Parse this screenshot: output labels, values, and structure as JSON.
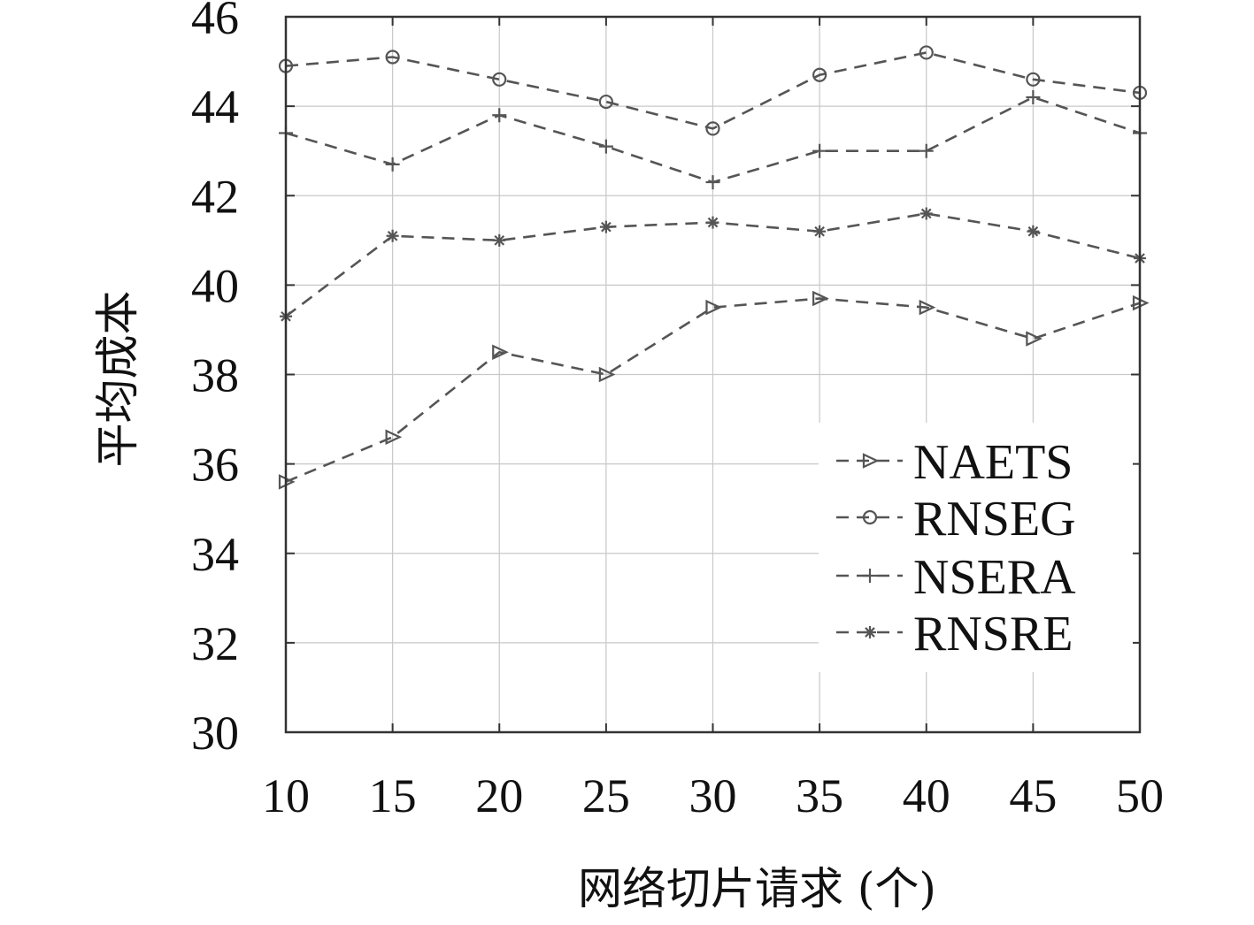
{
  "chart_data": {
    "type": "line",
    "title": "",
    "xlabel": "网络切片请求 (个)",
    "ylabel": "平均成本",
    "x": [
      10,
      15,
      20,
      25,
      30,
      35,
      40,
      45,
      50
    ],
    "xlim": [
      10,
      50
    ],
    "ylim": [
      30,
      46
    ],
    "xticks": [
      "10",
      "15",
      "20",
      "25",
      "30",
      "35",
      "40",
      "45",
      "50"
    ],
    "yticks": [
      "30",
      "32",
      "34",
      "36",
      "38",
      "40",
      "42",
      "44",
      "46"
    ],
    "grid": true,
    "legend_position": "bottom-right",
    "series": [
      {
        "name": "NAETS",
        "marker": "triangle-right-icon",
        "values": [
          35.6,
          36.6,
          38.5,
          38.0,
          39.5,
          39.7,
          39.5,
          38.8,
          39.6
        ]
      },
      {
        "name": "RNSEG",
        "marker": "circle-icon",
        "values": [
          44.9,
          45.1,
          44.6,
          44.1,
          43.5,
          44.7,
          45.2,
          44.6,
          44.3
        ]
      },
      {
        "name": "NSERA",
        "marker": "plus-icon",
        "values": [
          43.4,
          42.7,
          43.8,
          43.1,
          42.3,
          43.0,
          43.0,
          44.2,
          43.4
        ]
      },
      {
        "name": "RNSRE",
        "marker": "asterisk-icon",
        "values": [
          39.3,
          41.1,
          41.0,
          41.3,
          41.4,
          41.2,
          41.6,
          41.2,
          40.6
        ]
      }
    ]
  }
}
